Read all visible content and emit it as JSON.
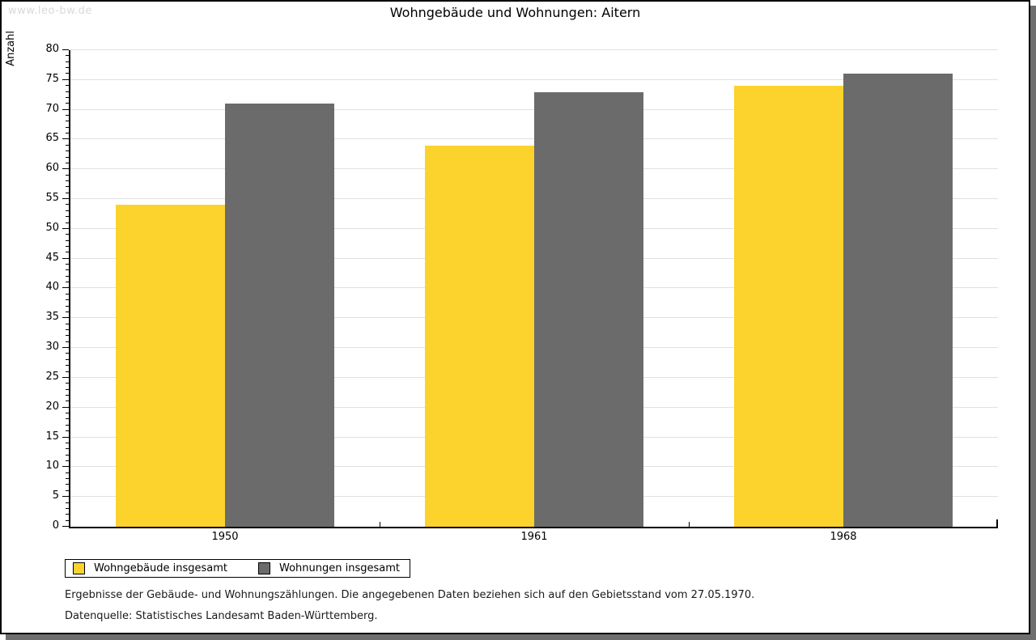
{
  "watermark": "www.leo-bw.de",
  "chart_data": {
    "type": "bar",
    "title": "Wohngebäude und Wohnungen: Aitern",
    "xlabel": "",
    "ylabel": "Anzahl",
    "categories": [
      "1950",
      "1961",
      "1968"
    ],
    "series": [
      {
        "name": "Wohngebäude insgesamt",
        "color": "#fcd32d",
        "values": [
          54,
          64,
          74
        ]
      },
      {
        "name": "Wohnungen insgesamt",
        "color": "#6b6b6b",
        "values": [
          71,
          73,
          76
        ]
      }
    ],
    "ylim": [
      0,
      80
    ],
    "ytick_major": 5,
    "ytick_minor": 1,
    "grid": true,
    "legend_position": "bottom-left"
  },
  "footnotes": [
    "Ergebnisse der Gebäude- und Wohnungszählungen. Die angegebenen Daten beziehen sich auf den Gebietsstand vom 27.05.1970.",
    "Datenquelle: Statistisches Landesamt Baden-Württemberg."
  ],
  "colors": {
    "grid": "#e0e0e0",
    "axis": "#000000",
    "frame_shadow": "#6e6e6e",
    "watermark": "#d9d9d9"
  }
}
